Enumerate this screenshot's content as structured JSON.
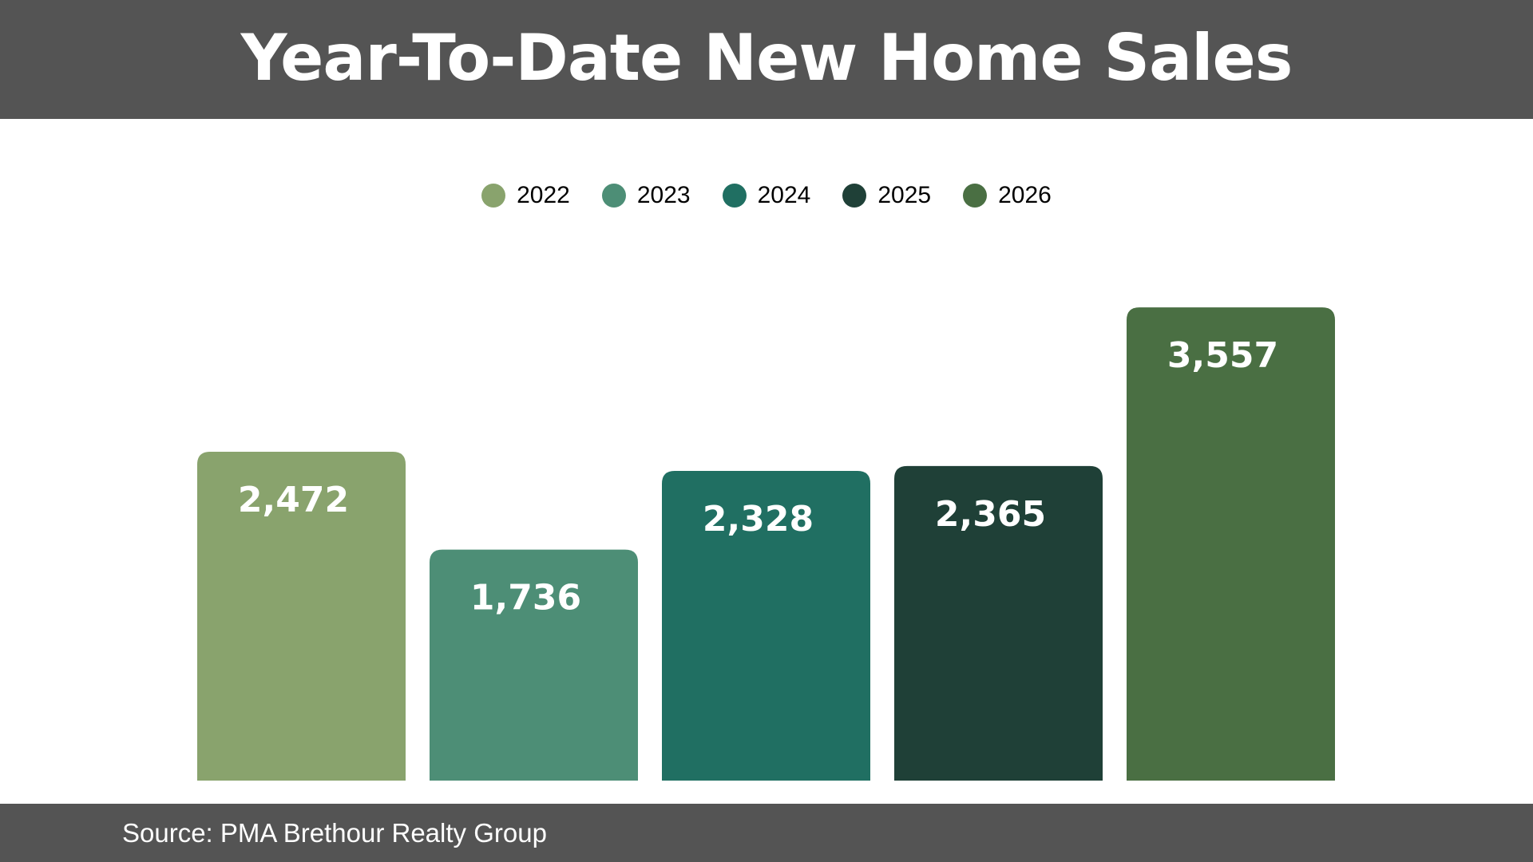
{
  "header": {
    "title": "Year-To-Date New Home Sales"
  },
  "footer": {
    "source": "Source: PMA Brethour Realty Group"
  },
  "chart_data": {
    "type": "bar",
    "title": "Year-To-Date New Home Sales",
    "xlabel": "",
    "ylabel": "",
    "ylim": [
      0,
      4200
    ],
    "grid": false,
    "legend_position": "top-center",
    "series": [
      {
        "name": "2022",
        "value": 2472,
        "label": "2,472",
        "color": "#89a36d"
      },
      {
        "name": "2023",
        "value": 1736,
        "label": "1,736",
        "color": "#4d8e76"
      },
      {
        "name": "2024",
        "value": 2328,
        "label": "2,328",
        "color": "#206f62"
      },
      {
        "name": "2025",
        "value": 2365,
        "label": "2,365",
        "color": "#1f4037"
      },
      {
        "name": "2026",
        "value": 3557,
        "label": "3,557",
        "color": "#4a6f43"
      }
    ]
  }
}
